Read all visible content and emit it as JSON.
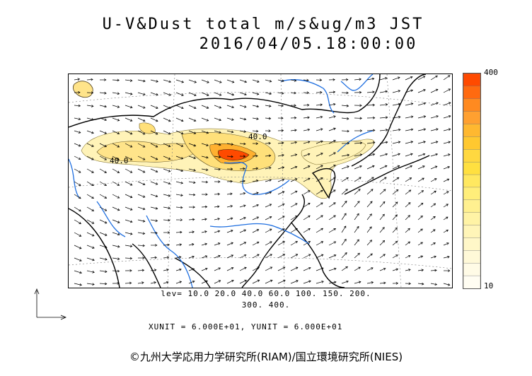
{
  "header": {
    "title": "U-V&Dust total m/s&ug/m3 JST",
    "datetime": "2016/04/05.18:00:00"
  },
  "map": {
    "type": "wind-vector + dust concentration map",
    "contour_labels": [
      "40.0",
      "40.0"
    ],
    "colors": {
      "land_border": "#000000",
      "rivers": "#1f6fe0",
      "dust_low": "#fff3b8",
      "dust_mid": "#ffd84a",
      "dust_high": "#ff4a00"
    }
  },
  "colorbar": {
    "max_label": "400",
    "min_label": "10",
    "colors": [
      "#ff4a00",
      "#ff6a10",
      "#ff8a20",
      "#ffa030",
      "#ffb830",
      "#ffc830",
      "#ffd840",
      "#ffe040",
      "#ffe860",
      "#ffee7a",
      "#fff090",
      "#fff3a5",
      "#fff5b8",
      "#fff7c8",
      "#fff9d8",
      "#fffbe6",
      "#fffdf2"
    ]
  },
  "levels": {
    "line1": "lev= 10.0 20.0 40.0 60.0 100. 150. 200.",
    "line2": "300. 400."
  },
  "units": {
    "text": "XUNIT = 6.000E+01, YUNIT = 6.000E+01"
  },
  "credit": "©九州大学応用力学研究所(RIAM)/国立環境研究所(NIES)"
}
